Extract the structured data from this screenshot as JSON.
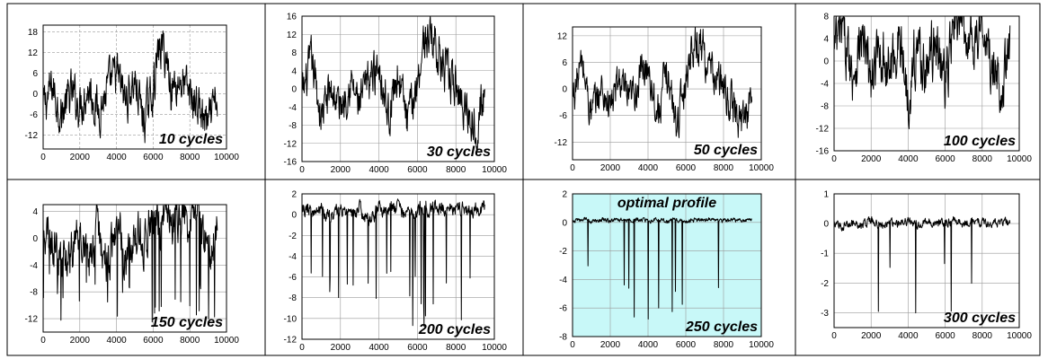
{
  "chart_data": [
    {
      "type": "line",
      "label": "10 cycles",
      "xlim": [
        0,
        10000
      ],
      "ylim": [
        -16,
        20
      ],
      "xticks": [
        0,
        2000,
        4000,
        6000,
        8000,
        10000
      ],
      "yticks": [
        -12,
        -6,
        0,
        6,
        12,
        18
      ],
      "grid": "dashed",
      "bg": "#ffffff",
      "label_pos": "bottom-right",
      "x": [
        0,
        500,
        1000,
        1500,
        2000,
        2500,
        3000,
        3500,
        4000,
        4500,
        5000,
        5500,
        6000,
        6300,
        6500,
        6800,
        7000,
        7500,
        8000,
        8500,
        9000,
        9200,
        9500
      ],
      "y": [
        -4,
        2,
        -6,
        0,
        -3,
        2,
        -5,
        1,
        6,
        -2,
        4,
        -8,
        2,
        12,
        14,
        8,
        2,
        4,
        0,
        -4,
        -10,
        -6,
        -2
      ]
    },
    {
      "type": "line",
      "label": "30 cycles",
      "xlim": [
        0,
        10000
      ],
      "ylim": [
        -16,
        16
      ],
      "xticks": [
        0,
        2000,
        4000,
        6000,
        8000,
        10000
      ],
      "yticks": [
        -16,
        -12,
        -8,
        -4,
        0,
        4,
        8,
        12,
        16
      ],
      "grid": "solid",
      "bg": "#ffffff",
      "label_pos": "bottom-right",
      "x": [
        0,
        500,
        1000,
        1500,
        2000,
        2500,
        3000,
        3500,
        4000,
        4500,
        5000,
        5500,
        6000,
        6300,
        6600,
        6900,
        7200,
        7500,
        8000,
        8500,
        9000,
        9200,
        9500
      ],
      "y": [
        -2,
        6,
        -6,
        0,
        -4,
        2,
        -4,
        2,
        6,
        -6,
        4,
        -8,
        2,
        10,
        12,
        11,
        6,
        3,
        0,
        -4,
        -8,
        -5,
        -2
      ]
    },
    {
      "type": "line",
      "label": "50 cycles",
      "xlim": [
        0,
        10000
      ],
      "ylim": [
        -16,
        14
      ],
      "xticks": [
        0,
        2000,
        4000,
        6000,
        8000,
        10000
      ],
      "yticks": [
        -12,
        -6,
        0,
        6,
        12
      ],
      "grid": "solid",
      "bg": "#ffffff",
      "label_pos": "bottom-right",
      "x": [
        0,
        500,
        1000,
        1500,
        2000,
        2500,
        3000,
        3500,
        4000,
        4500,
        5000,
        5500,
        6000,
        6300,
        6600,
        6900,
        7200,
        7500,
        8000,
        8500,
        9000,
        9200,
        9500
      ],
      "y": [
        -2,
        6,
        -6,
        0,
        -4,
        2,
        -4,
        2,
        6,
        -6,
        4,
        -8,
        2,
        10,
        10,
        10,
        4,
        3,
        0,
        -4,
        -8,
        -5,
        -2
      ]
    },
    {
      "type": "line",
      "label": "100 cycles",
      "xlim": [
        0,
        10000
      ],
      "ylim": [
        -16,
        8
      ],
      "xticks": [
        0,
        2000,
        4000,
        6000,
        8000,
        10000
      ],
      "yticks": [
        -16,
        -12,
        -8,
        -4,
        0,
        4,
        8
      ],
      "grid": "solid",
      "bg": "#ffffff",
      "label_pos": "bottom-right",
      "x": [
        0,
        500,
        1000,
        1500,
        2000,
        2500,
        3000,
        3500,
        4000,
        4500,
        5000,
        5500,
        6000,
        6500,
        7000,
        7500,
        8000,
        8500,
        9000,
        9500
      ],
      "y": [
        2,
        5,
        -2,
        4,
        -4,
        2,
        -2,
        4,
        -6,
        3,
        -2,
        4,
        -4,
        6,
        6,
        4,
        6,
        -2,
        -4,
        2
      ]
    },
    {
      "type": "line",
      "label": "150 cycles",
      "xlim": [
        0,
        10000
      ],
      "ylim": [
        -14,
        5
      ],
      "xticks": [
        0,
        2000,
        4000,
        6000,
        8000,
        10000
      ],
      "yticks": [
        -12,
        -8,
        -4,
        0,
        4
      ],
      "grid": "solid",
      "bg": "#ffffff",
      "label_pos": "bottom-right",
      "x": [
        0,
        500,
        1000,
        1500,
        2000,
        2500,
        3000,
        3500,
        4000,
        4500,
        5000,
        5500,
        6000,
        6500,
        7000,
        7500,
        8000,
        8500,
        9000,
        9500
      ],
      "y": [
        2,
        0,
        -4,
        -2,
        1,
        -3,
        2,
        -4,
        2,
        -3,
        2,
        -1,
        2,
        3,
        3,
        3,
        2,
        3,
        -2,
        2
      ]
    },
    {
      "type": "line",
      "label": "200 cycles",
      "xlim": [
        0,
        10000
      ],
      "ylim": [
        -12,
        2
      ],
      "xticks": [
        0,
        2000,
        4000,
        6000,
        8000,
        10000
      ],
      "yticks": [
        -12,
        -10,
        -8,
        -6,
        -4,
        -2,
        0,
        2
      ],
      "grid": "solid",
      "bg": "#ffffff",
      "label_pos": "bottom-right",
      "x": [
        0,
        500,
        1000,
        1500,
        2000,
        2500,
        3000,
        3500,
        4000,
        4500,
        5000,
        5500,
        6000,
        6500,
        7000,
        7500,
        8000,
        8500,
        9000,
        9500
      ],
      "y": [
        0.6,
        0.2,
        0.6,
        -0.5,
        0.6,
        0,
        0.5,
        -0.6,
        0.6,
        0.4,
        0.6,
        0.2,
        0.6,
        0.7,
        0.6,
        0.7,
        0.6,
        0.5,
        0.6,
        0.6
      ]
    },
    {
      "type": "line",
      "label": "250 cycles",
      "title": "optimal profile",
      "xlim": [
        0,
        10000
      ],
      "ylim": [
        -8,
        2
      ],
      "xticks": [
        0,
        2000,
        4000,
        6000,
        8000,
        10000
      ],
      "yticks": [
        -8,
        -6,
        -4,
        -2,
        0,
        2
      ],
      "grid": "solid",
      "bg": "#c8f8f8",
      "label_pos": "bottom-right",
      "x": [
        0,
        500,
        1000,
        1500,
        2000,
        2500,
        3000,
        3500,
        4000,
        4500,
        5000,
        5500,
        6000,
        6500,
        7000,
        7500,
        8000,
        8500,
        9000,
        9500
      ],
      "y": [
        0.1,
        0.2,
        0.1,
        0.2,
        0.1,
        0.2,
        0.1,
        0.2,
        0.1,
        0.2,
        0.1,
        0.2,
        0.1,
        0.2,
        0.1,
        0.2,
        0.1,
        0.2,
        0.1,
        0.2
      ]
    },
    {
      "type": "line",
      "label": "300 cycles",
      "xlim": [
        0,
        10000
      ],
      "ylim": [
        -3.5,
        1
      ],
      "xticks": [
        0,
        2000,
        4000,
        6000,
        8000,
        10000
      ],
      "yticks": [
        -3,
        -2,
        -1,
        0,
        1
      ],
      "grid": "solid",
      "bg": "#ffffff",
      "label_pos": "bottom-right",
      "x": [
        0,
        500,
        1000,
        1500,
        2000,
        2500,
        3000,
        3500,
        4000,
        4500,
        5000,
        5500,
        6000,
        6500,
        7000,
        7500,
        8000,
        8500,
        9000,
        9500
      ],
      "y": [
        0,
        -0.1,
        0.05,
        -0.05,
        0.1,
        -0.1,
        0.05,
        0,
        0.1,
        -0.05,
        0.1,
        0,
        0.05,
        0.1,
        0,
        0.05,
        0.1,
        0,
        0.05,
        0
      ]
    }
  ]
}
